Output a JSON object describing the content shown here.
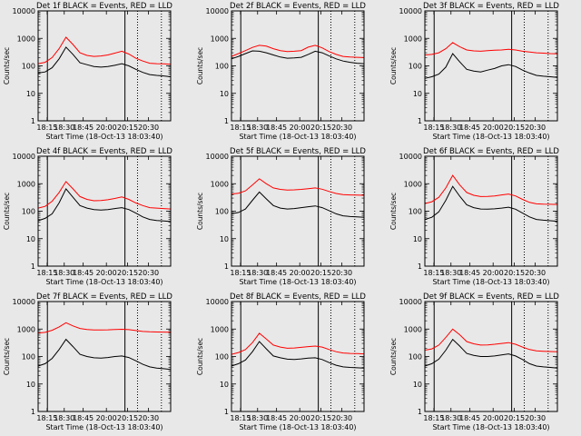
{
  "figure": {
    "background": "#e8e8e8"
  },
  "chart_data": {
    "type": "line",
    "scale": "log",
    "ylim": [
      1,
      10000
    ],
    "ytick_labels": [
      "1",
      "10",
      "100",
      "1000",
      "10000"
    ],
    "xtick_labels": [
      "18:15",
      "18:30",
      "18:45",
      "20:00",
      "20:15",
      "20:30"
    ],
    "xlabel": "Start Time (18-Oct-13 18:03:40)",
    "ylabel": "Counts/sec",
    "series_colors": {
      "events": "#000000",
      "lld": "#ff0000"
    },
    "panels": [
      {
        "title": "Det 1f BLACK = Events, RED = LLD",
        "series": [
          {
            "key": "events",
            "values": [
              55,
              60,
              85,
              180,
              480,
              260,
              130,
              110,
              95,
              90,
              95,
              105,
              120,
              100,
              75,
              58,
              48,
              45,
              43,
              40
            ]
          },
          {
            "key": "lld",
            "values": [
              120,
              135,
              200,
              420,
              1100,
              600,
              300,
              240,
              220,
              230,
              250,
              290,
              340,
              270,
              190,
              150,
              125,
              120,
              118,
              115
            ]
          }
        ]
      },
      {
        "title": "Det 2f BLACK = Events, RED = LLD",
        "series": [
          {
            "key": "events",
            "values": [
              180,
              220,
              280,
              350,
              340,
              300,
              250,
              210,
              190,
              195,
              205,
              260,
              340,
              300,
              230,
              180,
              150,
              135,
              125,
              120
            ]
          },
          {
            "key": "lld",
            "values": [
              220,
              280,
              360,
              470,
              560,
              520,
              420,
              360,
              330,
              340,
              360,
              480,
              560,
              450,
              330,
              260,
              220,
              210,
              205,
              200
            ]
          }
        ]
      },
      {
        "title": "Det 3f BLACK = Events, RED = LLD",
        "series": [
          {
            "key": "events",
            "values": [
              35,
              40,
              50,
              90,
              280,
              140,
              75,
              65,
              60,
              70,
              80,
              100,
              110,
              95,
              70,
              55,
              45,
              42,
              40,
              38
            ]
          },
          {
            "key": "lld",
            "values": [
              250,
              260,
              300,
              420,
              700,
              500,
              380,
              350,
              340,
              360,
              370,
              380,
              400,
              380,
              340,
              320,
              300,
              290,
              280,
              275
            ]
          }
        ]
      },
      {
        "title": "Det 4f BLACK = Events, RED = LLD",
        "series": [
          {
            "key": "events",
            "values": [
              45,
              55,
              80,
              200,
              650,
              320,
              160,
              130,
              115,
              110,
              115,
              125,
              135,
              115,
              85,
              62,
              50,
              46,
              44,
              42
            ]
          },
          {
            "key": "lld",
            "values": [
              130,
              150,
              230,
              480,
              1200,
              650,
              340,
              270,
              240,
              245,
              260,
              290,
              330,
              270,
              200,
              160,
              135,
              130,
              125,
              120
            ]
          }
        ]
      },
      {
        "title": "Det 5f BLACK = Events, RED = LLD",
        "series": [
          {
            "key": "events",
            "values": [
              80,
              90,
              120,
              250,
              500,
              280,
              160,
              130,
              120,
              125,
              135,
              145,
              155,
              135,
              105,
              80,
              68,
              64,
              62,
              60
            ]
          },
          {
            "key": "lld",
            "values": [
              420,
              450,
              550,
              900,
              1500,
              1000,
              700,
              620,
              590,
              600,
              620,
              660,
              700,
              630,
              520,
              440,
              400,
              390,
              385,
              380
            ]
          }
        ]
      },
      {
        "title": "Det 6f BLACK = Events, RED = LLD",
        "series": [
          {
            "key": "events",
            "values": [
              50,
              60,
              95,
              250,
              800,
              350,
              170,
              135,
              120,
              118,
              122,
              130,
              140,
              118,
              85,
              62,
              50,
              47,
              45,
              43
            ]
          },
          {
            "key": "lld",
            "values": [
              190,
              220,
              320,
              700,
              2000,
              900,
              480,
              380,
              340,
              345,
              360,
              390,
              420,
              360,
              270,
              210,
              185,
              180,
              178,
              175
            ]
          }
        ]
      },
      {
        "title": "Det 7f BLACK = Events, RED = LLD",
        "series": [
          {
            "key": "events",
            "values": [
              45,
              55,
              85,
              180,
              420,
              230,
              120,
              100,
              90,
              88,
              92,
              100,
              105,
              92,
              70,
              52,
              42,
              38,
              36,
              34
            ]
          },
          {
            "key": "lld",
            "values": [
              720,
              760,
              900,
              1200,
              1700,
              1300,
              1050,
              960,
              920,
              930,
              940,
              960,
              980,
              950,
              880,
              820,
              790,
              780,
              775,
              770
            ]
          }
        ]
      },
      {
        "title": "Det 8f BLACK = Events, RED = LLD",
        "series": [
          {
            "key": "events",
            "values": [
              45,
              55,
              75,
              150,
              350,
              190,
              105,
              90,
              80,
              78,
              82,
              88,
              90,
              78,
              60,
              48,
              42,
              40,
              39,
              38
            ]
          },
          {
            "key": "lld",
            "values": [
              120,
              140,
              180,
              320,
              700,
              430,
              260,
              220,
              200,
              205,
              215,
              230,
              240,
              220,
              180,
              150,
              135,
              130,
              128,
              125
            ]
          }
        ]
      },
      {
        "title": "Det 9f BLACK = Events, RED = LLD",
        "series": [
          {
            "key": "events",
            "values": [
              45,
              55,
              80,
              170,
              420,
              240,
              130,
              110,
              100,
              100,
              105,
              115,
              125,
              105,
              78,
              55,
              45,
              42,
              40,
              38
            ]
          },
          {
            "key": "lld",
            "values": [
              170,
              190,
              260,
              500,
              1000,
              620,
              350,
              290,
              260,
              265,
              280,
              300,
              320,
              280,
              220,
              180,
              160,
              155,
              152,
              150
            ]
          }
        ]
      }
    ]
  }
}
